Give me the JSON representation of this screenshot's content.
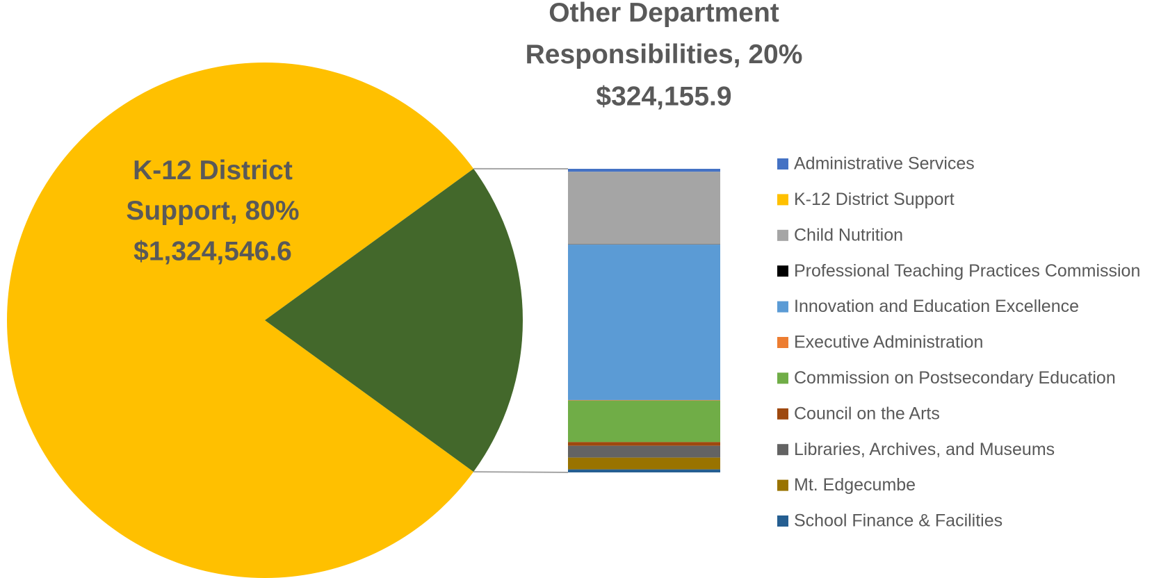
{
  "chart_data": {
    "type": "pie-of-bar",
    "series": [
      {
        "name": "Administrative Services",
        "color": "#4472c4",
        "value": 3160
      },
      {
        "name": "K-12 District Support",
        "color": "#ffc000",
        "value": 1324546.6
      },
      {
        "name": "Child Nutrition",
        "color": "#a5a5a5",
        "value": 77500
      },
      {
        "name": "Professional Teaching Practices Commission",
        "color": "#000000",
        "value": 300
      },
      {
        "name": "Innovation and Education Excellence",
        "color": "#5b9bd5",
        "value": 166000
      },
      {
        "name": "Executive Administration",
        "color": "#ed7d31",
        "value": 500
      },
      {
        "name": "Commission on Postsecondary Education",
        "color": "#70ad47",
        "value": 44300
      },
      {
        "name": "Council on the Arts",
        "color": "#9e480e",
        "value": 4000
      },
      {
        "name": "Libraries, Archives, and Museums",
        "color": "#636363",
        "value": 12600
      },
      {
        "name": "Mt. Edgecumbe",
        "color": "#997300",
        "value": 12600
      },
      {
        "name": "School Finance & Facilities",
        "color": "#255e91",
        "value": 3200
      }
    ],
    "pie": {
      "data_labels": [
        "K-12 District Support, 80%",
        "Other Department Responsibilities, 20%"
      ],
      "values": [
        80,
        20
      ],
      "amounts": [
        1324546.6,
        324155.9
      ],
      "amount_labels": [
        "$1,324,546.6",
        "$324,155.9"
      ],
      "colors": [
        "#ffc000",
        "#43682b"
      ]
    }
  }
}
